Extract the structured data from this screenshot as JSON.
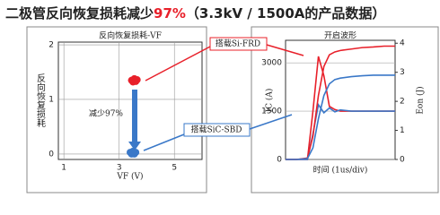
{
  "header": {
    "title_start": "二极管反向恢复损耗减少",
    "title_highlight": "97%",
    "title_end": "（3.3kV / 1500A的产品数据）"
  },
  "chart_data": [
    {
      "type": "scatter",
      "title": "反向恢复损耗-VF",
      "x_label": "VF (V)",
      "y_label": "反向恢复损耗",
      "xlim": [
        0.8,
        6.0
      ],
      "xticks": [
        1,
        3,
        5
      ],
      "ylim": [
        -0.1,
        2.05
      ],
      "yticks": [
        0,
        1,
        2
      ],
      "grid": true,
      "series": [
        {
          "color": "#e8202a",
          "x": [
            3.45,
            3.55,
            3.65,
            3.5,
            3.6
          ],
          "values": [
            1.35,
            1.38,
            1.36,
            1.32,
            1.33
          ]
        },
        {
          "color": "#3a78c8",
          "x": [
            3.4,
            3.5,
            3.6,
            3.45,
            3.55
          ],
          "values": [
            0.03,
            0.05,
            0.03,
            0.0,
            0.0
          ]
        }
      ],
      "annotations": [
        {
          "text": "搭载Si-FRD",
          "color": "#e8202a"
        },
        {
          "text": "搭载SiC-SBD",
          "color": "#3a78c8"
        },
        {
          "text": "减少97%",
          "color": "#e8202a"
        }
      ]
    },
    {
      "type": "line",
      "title": "开启波形",
      "x_label": "时间 (1us/div)",
      "y_label": "IC (A)",
      "y2_label": "Eon (J)",
      "xlim": [
        0,
        10
      ],
      "ylim": [
        0,
        3700
      ],
      "yticks": [
        0,
        1500,
        3000
      ],
      "y2lim": [
        0,
        4.1
      ],
      "y2ticks": [
        0,
        1,
        2,
        3,
        4
      ],
      "grid": true,
      "x": [
        0,
        1,
        2,
        2.5,
        3,
        3.5,
        4,
        4.5,
        5,
        6,
        7,
        8,
        9,
        10
      ],
      "series": [
        {
          "color": "#e8202a",
          "values": [
            0,
            0,
            0,
            1500,
            3200,
            2600,
            1650,
            1550,
            1500,
            1500,
            1500,
            1500,
            1500,
            1500
          ]
        },
        {
          "color": "#3a78c8",
          "values": [
            0,
            0,
            0,
            800,
            1700,
            1450,
            1600,
            1480,
            1540,
            1500,
            1500,
            1500,
            1500,
            1500
          ]
        },
        {
          "color": "#e8202a",
          "axis": "y2",
          "values": [
            0,
            0,
            0.05,
            0.8,
            2.2,
            3.2,
            3.6,
            3.7,
            3.75,
            3.8,
            3.85,
            3.87,
            3.9,
            3.9
          ]
        },
        {
          "color": "#3a78c8",
          "axis": "y2",
          "values": [
            0,
            0,
            0.03,
            0.4,
            1.4,
            2.2,
            2.6,
            2.75,
            2.8,
            2.85,
            2.88,
            2.9,
            2.9,
            2.9
          ]
        }
      ]
    }
  ]
}
